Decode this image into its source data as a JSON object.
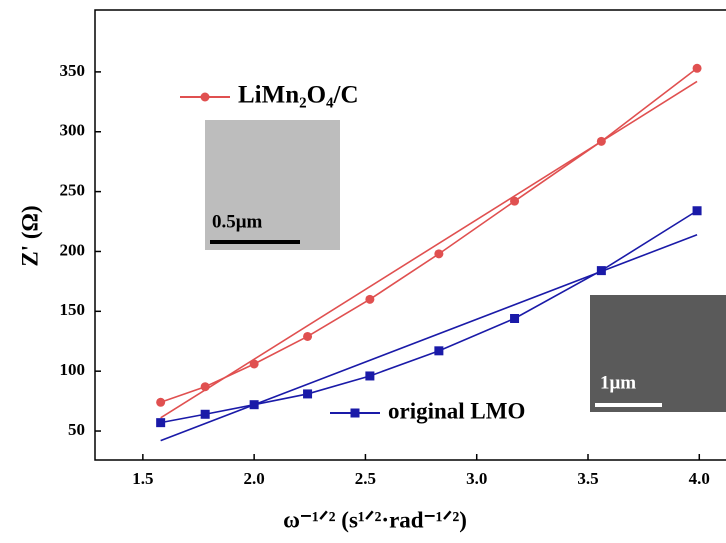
{
  "chart_data": {
    "type": "line",
    "x_label": "ω⁻¹ᐟ² (s¹ᐟ²·rad⁻¹ᐟ²)",
    "y_label": "Z' (Ω)",
    "x": [
      1.58,
      1.78,
      2.0,
      2.24,
      2.52,
      2.83,
      3.17,
      3.56,
      3.99
    ],
    "series": [
      {
        "name": "LiMn₂O₄/C",
        "color": "#e05050",
        "marker": "circle",
        "values": [
          74,
          87,
          106,
          129,
          160,
          198,
          242,
          292,
          353
        ]
      },
      {
        "name": "original LMO",
        "color": "#1a1aa8",
        "marker": "square",
        "values": [
          57,
          64,
          72,
          81,
          96,
          117,
          144,
          184,
          234
        ]
      }
    ],
    "fit_lines": [
      {
        "color": "#e05050",
        "x": [
          1.58,
          3.99
        ],
        "values": [
          61,
          342
        ]
      },
      {
        "color": "#1a1aa8",
        "x": [
          1.58,
          3.99
        ],
        "values": [
          42,
          214
        ]
      }
    ],
    "insets": [
      "0.5μm",
      "1μm"
    ],
    "xlim": [
      1.285,
      4.12
    ],
    "xticks": [
      {
        "value": 1.5,
        "label": "1.5"
      },
      {
        "value": 2.0,
        "label": "2.0"
      },
      {
        "value": 2.5,
        "label": "2.5"
      },
      {
        "value": 3.0,
        "label": "3.0"
      },
      {
        "value": 3.5,
        "label": "3.5"
      },
      {
        "value": 4.0,
        "label": "4.0"
      }
    ],
    "ylim": [
      25.8,
      401.7
    ],
    "yticks": [
      50,
      100,
      150,
      200,
      250,
      300,
      350
    ]
  }
}
